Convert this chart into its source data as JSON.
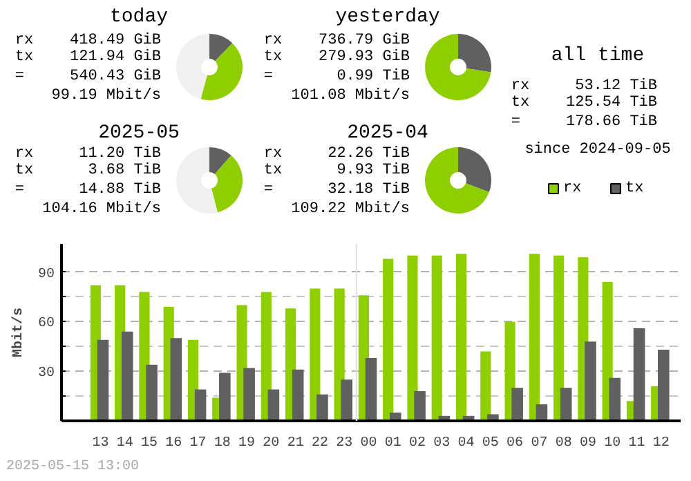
{
  "chart_data": [
    {
      "type": "donut",
      "title": "today",
      "categories": [
        null,
        null,
        null
      ],
      "values": [
        12.2,
        42.0,
        45.8
      ],
      "colors": [
        "#606060",
        "#8fcf00",
        "#f0f0f0"
      ],
      "annotations": [
        "rx    418.49 GiB",
        "tx    121.94 GiB",
        "=     540.43 GiB",
        "99.19 Mbit/s"
      ]
    },
    {
      "type": "donut",
      "title": "yesterday",
      "categories": [
        null,
        null
      ],
      "values": [
        27.5,
        72.5
      ],
      "colors": [
        "#606060",
        "#8fcf00"
      ],
      "annotations": [
        "rx    736.79 GiB",
        "tx    279.93 GiB",
        "=       0.99 TiB",
        "101.08 Mbit/s"
      ]
    },
    {
      "type": "other",
      "title": "all time",
      "annotations": [
        "rx     53.12 TiB",
        "tx    125.54 TiB",
        "=     178.66 TiB",
        "since 2024-09-05"
      ]
    },
    {
      "type": "donut",
      "title": "2025-05",
      "categories": [
        null,
        null,
        null
      ],
      "values": [
        11.4,
        34.6,
        54.0
      ],
      "colors": [
        "#606060",
        "#8fcf00",
        "#f0f0f0"
      ],
      "annotations": [
        "rx     11.20 TiB",
        "tx      3.68 TiB",
        "=      14.88 TiB",
        "104.16 Mbit/s"
      ]
    },
    {
      "type": "donut",
      "title": "2025-04",
      "categories": [
        null,
        null
      ],
      "values": [
        30.8,
        69.2
      ],
      "colors": [
        "#606060",
        "#8fcf00"
      ],
      "annotations": [
        "rx     22.26 TiB",
        "tx      9.93 TiB",
        "=      32.18 TiB",
        "109.22 Mbit/s"
      ]
    },
    {
      "type": "bar",
      "ylabel": "Mbit/s",
      "legend": "top right",
      "grid": "y",
      "categories": [
        "13",
        "14",
        "15",
        "16",
        "17",
        "18",
        "19",
        "20",
        "21",
        "22",
        "23",
        "00",
        "01",
        "02",
        "03",
        "04",
        "05",
        "06",
        "07",
        "08",
        "09",
        "10",
        "11",
        "12"
      ],
      "ylim": [
        0,
        107
      ],
      "yticks": [
        {
          "value": 15,
          "label": null
        },
        30,
        {
          "value": 45,
          "label": null
        },
        60,
        {
          "value": 75,
          "label": null
        },
        90
      ],
      "ref_lines": [
        {
          "axis": "x",
          "value": "00",
          "color": "#e0e0e0"
        }
      ],
      "series": [
        {
          "name": "rx",
          "color": "#8fcf00",
          "values": [
            82,
            82,
            78,
            69,
            49,
            14,
            70,
            78,
            68,
            80,
            80,
            76,
            98,
            100,
            100,
            101,
            42,
            60,
            101,
            100,
            99,
            84,
            12,
            21
          ]
        },
        {
          "name": "tx",
          "color": "#606060",
          "values": [
            49,
            54,
            34,
            50,
            19,
            29,
            32,
            19,
            31,
            16,
            25,
            38,
            5,
            18,
            3,
            3,
            4,
            20,
            10,
            20,
            48,
            26,
            56,
            43
          ]
        }
      ],
      "annotations": [
        "2025-05-15 13:00"
      ]
    }
  ]
}
